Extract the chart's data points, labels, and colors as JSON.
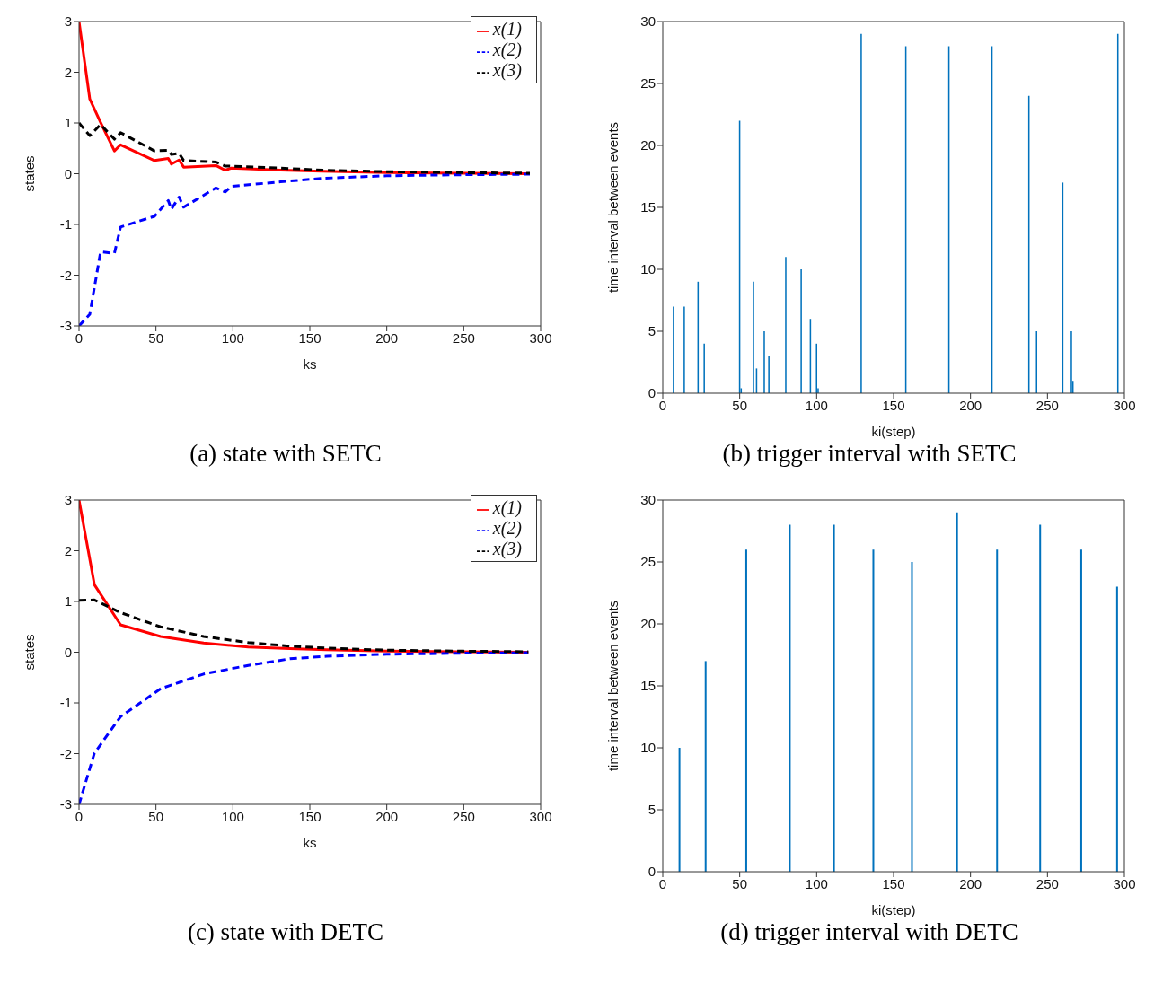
{
  "chart_data": [
    {
      "type": "line",
      "title": "(a)  state with SETC",
      "xlabel": "ks",
      "ylabel": "states",
      "xlim": [
        0,
        300
      ],
      "xticks": [
        0,
        50,
        100,
        150,
        200,
        250,
        300
      ],
      "ylim": [
        -3,
        3
      ],
      "yticks": [
        -3,
        -2,
        -1,
        0,
        1,
        2,
        3
      ],
      "legend": "top right",
      "grid": false,
      "marker": "none",
      "series": [
        {
          "name": "x(1)",
          "color": "#ff0000",
          "line_style": "solid",
          "x": [
            0,
            7,
            14,
            23,
            27,
            49,
            58,
            60,
            65,
            68,
            89,
            95,
            99,
            131,
            158,
            200,
            250,
            293
          ],
          "values": [
            3,
            1.47,
            1.01,
            0.45,
            0.57,
            0.26,
            0.3,
            0.19,
            0.27,
            0.13,
            0.16,
            0.07,
            0.11,
            0.07,
            0.05,
            0.02,
            0.01,
            0
          ]
        },
        {
          "name": "x(2)",
          "color": "#0000ff",
          "line_style": "dashed",
          "x": [
            0,
            7,
            14,
            23,
            27,
            49,
            58,
            60,
            65,
            68,
            89,
            95,
            99,
            131,
            158,
            200,
            250,
            293
          ],
          "values": [
            -3,
            -2.77,
            -1.54,
            -1.57,
            -1.05,
            -0.84,
            -0.53,
            -0.7,
            -0.46,
            -0.66,
            -0.28,
            -0.36,
            -0.25,
            -0.16,
            -0.09,
            -0.04,
            -0.02,
            -0.01
          ]
        },
        {
          "name": "x(3)",
          "color": "#000000",
          "line_style": "dashed",
          "x": [
            0,
            7,
            14,
            23,
            27,
            49,
            58,
            60,
            65,
            68,
            89,
            95,
            99,
            131,
            158,
            200,
            250,
            293
          ],
          "values": [
            1,
            0.75,
            0.97,
            0.68,
            0.81,
            0.45,
            0.46,
            0.38,
            0.4,
            0.26,
            0.23,
            0.15,
            0.15,
            0.11,
            0.07,
            0.04,
            0.02,
            0.01
          ]
        }
      ]
    },
    {
      "type": "bar",
      "title": "(b)  trigger interval with SETC",
      "xlabel": "ki(step)",
      "ylabel": "time interval between events",
      "xlim": [
        0,
        300
      ],
      "xticks": [
        0,
        50,
        100,
        150,
        200,
        250,
        300
      ],
      "ylim": [
        0,
        30
      ],
      "yticks": [
        0,
        5,
        10,
        15,
        20,
        25,
        30
      ],
      "grid": false,
      "color": "#0072bd",
      "x": [
        7,
        14,
        23,
        27,
        50,
        51,
        59,
        61,
        66,
        69,
        80,
        90,
        96,
        100,
        101,
        129,
        158,
        186,
        214,
        238,
        243,
        260,
        265.6,
        266.6,
        295.8
      ],
      "values": [
        7,
        7,
        9,
        4,
        22,
        0.4,
        9,
        2,
        5,
        3,
        11,
        10,
        6,
        4,
        0.4,
        29,
        28,
        28,
        28,
        24,
        5,
        17,
        5,
        1,
        29
      ]
    },
    {
      "type": "line",
      "title": "(c)  state with DETC",
      "xlabel": "ks",
      "ylabel": "states",
      "xlim": [
        0,
        300
      ],
      "xticks": [
        0,
        50,
        100,
        150,
        200,
        250,
        300
      ],
      "ylim": [
        -3,
        3
      ],
      "yticks": [
        -3,
        -2,
        -1,
        0,
        1,
        2,
        3
      ],
      "legend": "top right",
      "grid": false,
      "marker": "none",
      "series": [
        {
          "name": "x(1)",
          "color": "#ff0000",
          "line_style": "solid",
          "x": [
            0,
            10,
            27,
            53,
            81,
            110,
            137,
            161,
            200,
            250,
            292
          ],
          "values": [
            3,
            1.33,
            0.54,
            0.31,
            0.18,
            0.1,
            0.07,
            0.05,
            0.02,
            0.01,
            0
          ]
        },
        {
          "name": "x(2)",
          "color": "#0000ff",
          "line_style": "dashed",
          "x": [
            0,
            10,
            27,
            53,
            81,
            110,
            137,
            161,
            200,
            250,
            292
          ],
          "values": [
            -3,
            -1.99,
            -1.27,
            -0.72,
            -0.43,
            -0.26,
            -0.13,
            -0.08,
            -0.04,
            -0.02,
            -0.01
          ]
        },
        {
          "name": "x(3)",
          "color": "#000000",
          "line_style": "dashed",
          "x": [
            0,
            10,
            27,
            53,
            81,
            110,
            137,
            161,
            200,
            250,
            292
          ],
          "values": [
            1.02,
            1.03,
            0.78,
            0.5,
            0.31,
            0.19,
            0.12,
            0.08,
            0.04,
            0.02,
            0.01
          ]
        }
      ]
    },
    {
      "type": "bar",
      "title": "(d)  trigger interval with DETC",
      "xlabel": "ki(step)",
      "ylabel": "time interval between events",
      "xlim": [
        0,
        300
      ],
      "xticks": [
        0,
        50,
        100,
        150,
        200,
        250,
        300
      ],
      "ylim": [
        0,
        30
      ],
      "yticks": [
        0,
        5,
        10,
        15,
        20,
        25,
        30
      ],
      "grid": false,
      "color": "#0072bd",
      "x": [
        10.6,
        27.6,
        54,
        82.3,
        111,
        136.6,
        161.7,
        191,
        217,
        245,
        271.7,
        295
      ],
      "values": [
        10,
        17,
        26,
        28,
        28,
        26,
        25,
        29,
        26,
        28,
        26,
        23
      ]
    }
  ]
}
